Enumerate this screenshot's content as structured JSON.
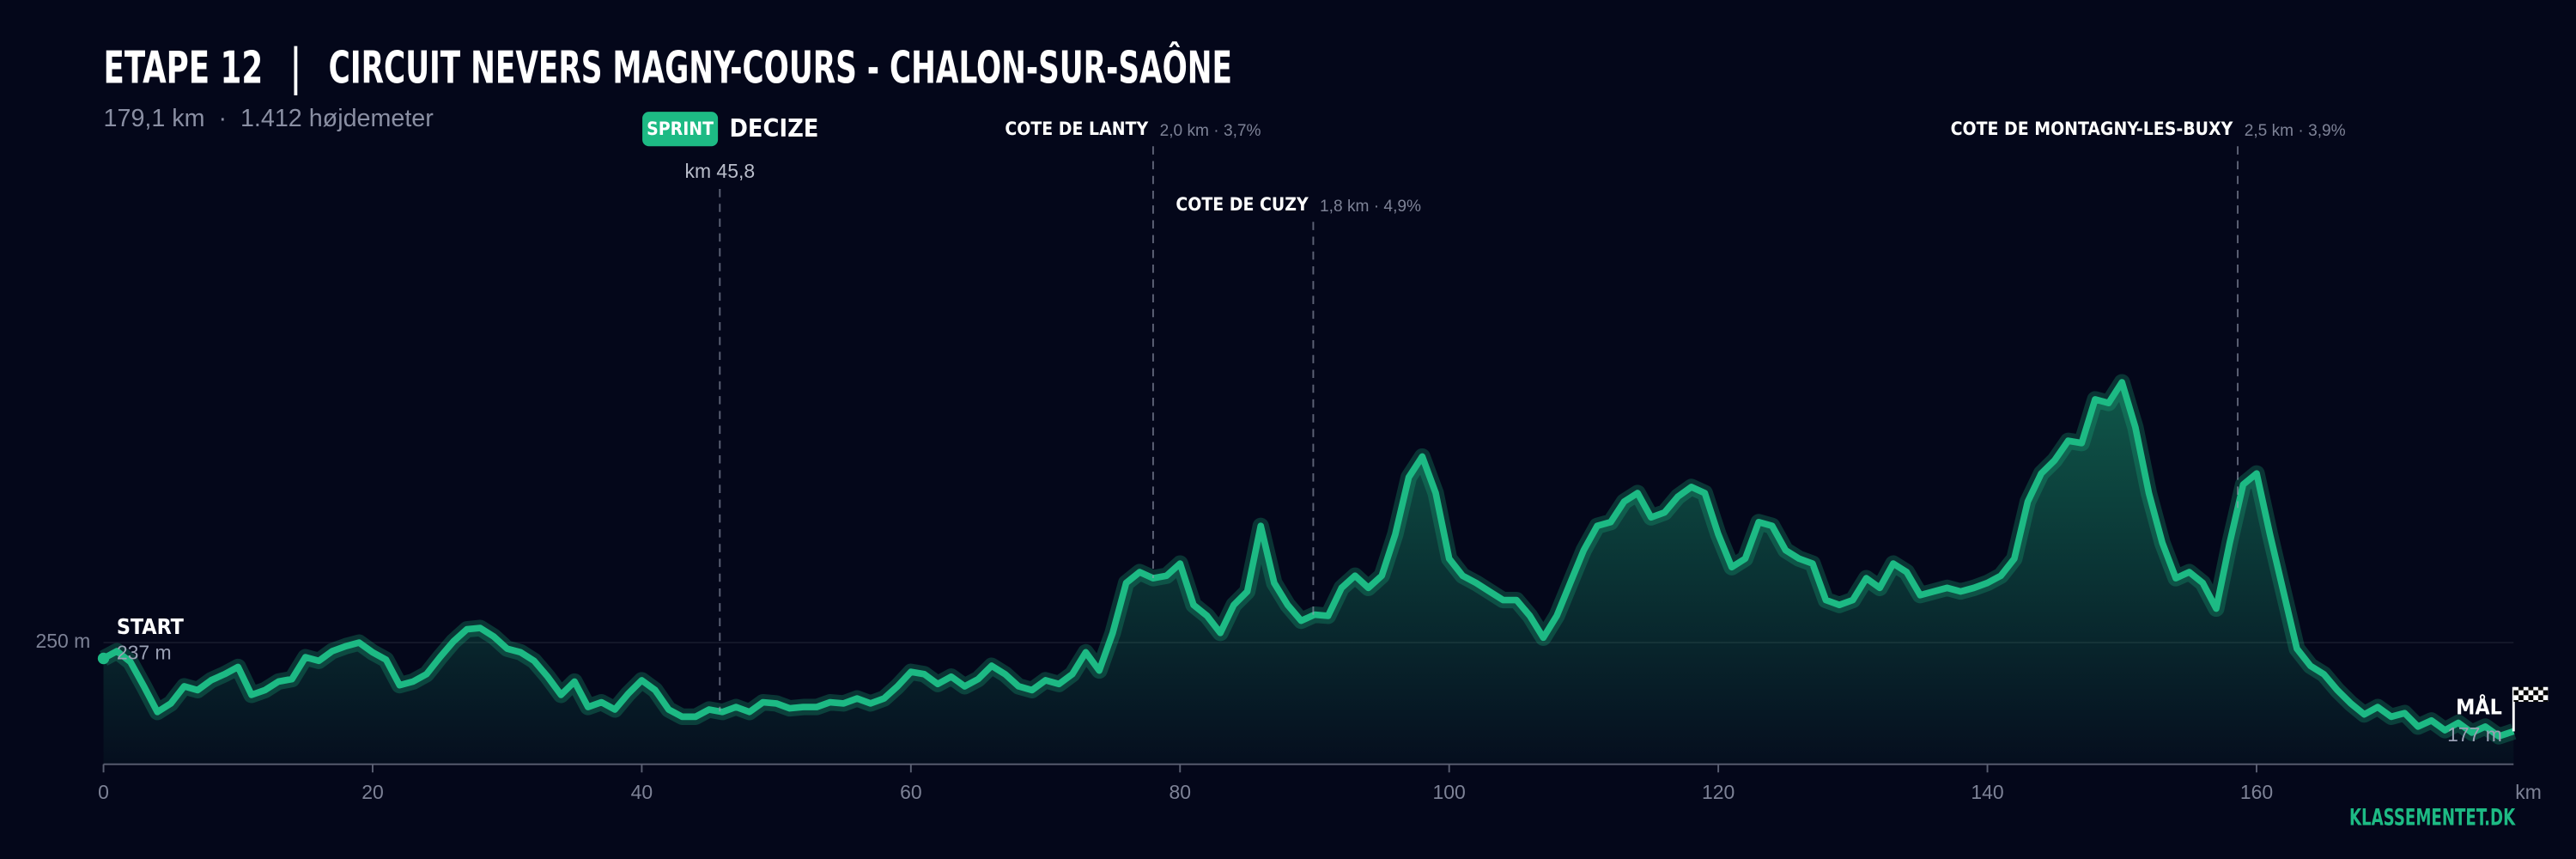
{
  "chart_data": {
    "type": "line",
    "title": "ETAPE 12",
    "route": "CIRCUIT NEVERS MAGNY-COURS - CHALON-SUR-SAÔNE",
    "subtitle": "179,1 km  ·  1.412 højdemeter",
    "x": [
      0,
      1,
      2,
      3,
      4,
      5,
      6,
      7,
      8,
      9,
      10,
      11,
      12,
      13,
      14,
      15,
      16,
      17,
      18,
      19,
      20,
      21,
      22,
      23,
      24,
      25,
      26,
      27,
      28,
      29,
      30,
      31,
      32,
      33,
      34,
      35,
      36,
      37,
      38,
      39,
      40,
      41,
      42,
      43,
      44,
      45,
      46,
      47,
      48,
      49,
      50,
      51,
      52,
      53,
      54,
      55,
      56,
      57,
      58,
      59,
      60,
      61,
      62,
      63,
      64,
      65,
      66,
      67,
      68,
      69,
      70,
      71,
      72,
      73,
      74,
      75,
      76,
      77,
      78,
      79,
      80,
      81,
      82,
      83,
      84,
      85,
      86,
      87,
      88,
      89,
      90,
      91,
      92,
      93,
      94,
      95,
      96,
      97,
      98,
      99,
      100,
      101,
      102,
      103,
      104,
      105,
      106,
      107,
      108,
      109,
      110,
      111,
      112,
      113,
      114,
      115,
      116,
      117,
      118,
      119,
      120,
      121,
      122,
      123,
      124,
      125,
      126,
      127,
      128,
      129,
      130,
      131,
      132,
      133,
      134,
      135,
      136,
      137,
      138,
      139,
      140,
      141,
      142,
      143,
      144,
      145,
      146,
      147,
      148,
      149,
      150,
      151,
      152,
      153,
      154,
      155,
      156,
      157,
      158,
      159,
      160,
      161,
      162,
      163,
      164,
      165,
      166,
      167,
      168,
      169,
      170,
      171,
      172,
      173,
      174,
      175,
      176,
      177,
      178,
      179.1
    ],
    "values": [
      237,
      243,
      234,
      214,
      193,
      200,
      214,
      211,
      219,
      224,
      230,
      207,
      211,
      218,
      220,
      238,
      235,
      243,
      247,
      250,
      242,
      236,
      215,
      218,
      224,
      238,
      251,
      261,
      262,
      255,
      245,
      242,
      235,
      222,
      207,
      218,
      197,
      201,
      195,
      208,
      219,
      211,
      195,
      189,
      189,
      195,
      193,
      197,
      193,
      201,
      200,
      196,
      197,
      197,
      201,
      200,
      204,
      200,
      204,
      214,
      226,
      224,
      216,
      222,
      214,
      220,
      231,
      224,
      214,
      211,
      219,
      216,
      224,
      242,
      227,
      258,
      299,
      308,
      303,
      305,
      315,
      281,
      272,
      258,
      281,
      292,
      346,
      299,
      281,
      268,
      273,
      272,
      295,
      305,
      295,
      305,
      339,
      386,
      403,
      373,
      319,
      305,
      299,
      292,
      285,
      285,
      272,
      254,
      272,
      299,
      326,
      346,
      349,
      366,
      373,
      353,
      357,
      370,
      378,
      373,
      339,
      312,
      319,
      349,
      346,
      326,
      319,
      315,
      285,
      281,
      285,
      303,
      295,
      315,
      308,
      289,
      292,
      295,
      292,
      295,
      299,
      305,
      319,
      366,
      389,
      400,
      416,
      414,
      450,
      447,
      464,
      427,
      373,
      332,
      303,
      308,
      299,
      278,
      332,
      380,
      389,
      339,
      292,
      245,
      231,
      224,
      211,
      200,
      191,
      197,
      189,
      192,
      181,
      186,
      178,
      184,
      176,
      181,
      173,
      177
    ],
    "color": "#1dba84",
    "xlim": [
      0,
      179.1
    ],
    "xticks": [
      0,
      20,
      40,
      60,
      80,
      100,
      120,
      140,
      160
    ],
    "x_unit": "km",
    "ylim": [
      150,
      600
    ],
    "yticks": [
      {
        "value": 250,
        "label": "250 m"
      }
    ],
    "grid": true,
    "start": {
      "label": "START",
      "value_label": "237 m"
    },
    "finish": {
      "label": "MÅL",
      "value_label": "177 m"
    },
    "sprint": {
      "badge": "SPRINT",
      "name": "DECIZE",
      "km": 45.8,
      "km_label": "km 45,8"
    },
    "climbs": [
      {
        "name": "COTE DE LANTY",
        "info": "2,0 km · 3,7%",
        "km": 78.0
      },
      {
        "name": "COTE DE CUZY",
        "info": "1,8 km · 4,9%",
        "km": 89.9
      },
      {
        "name": "COTE DE MONTAGNY-LES-BUXY",
        "info": "2,5 km · 3,9%",
        "km": 158.6
      }
    ],
    "brand": "KLASSEMENTET.DK"
  }
}
